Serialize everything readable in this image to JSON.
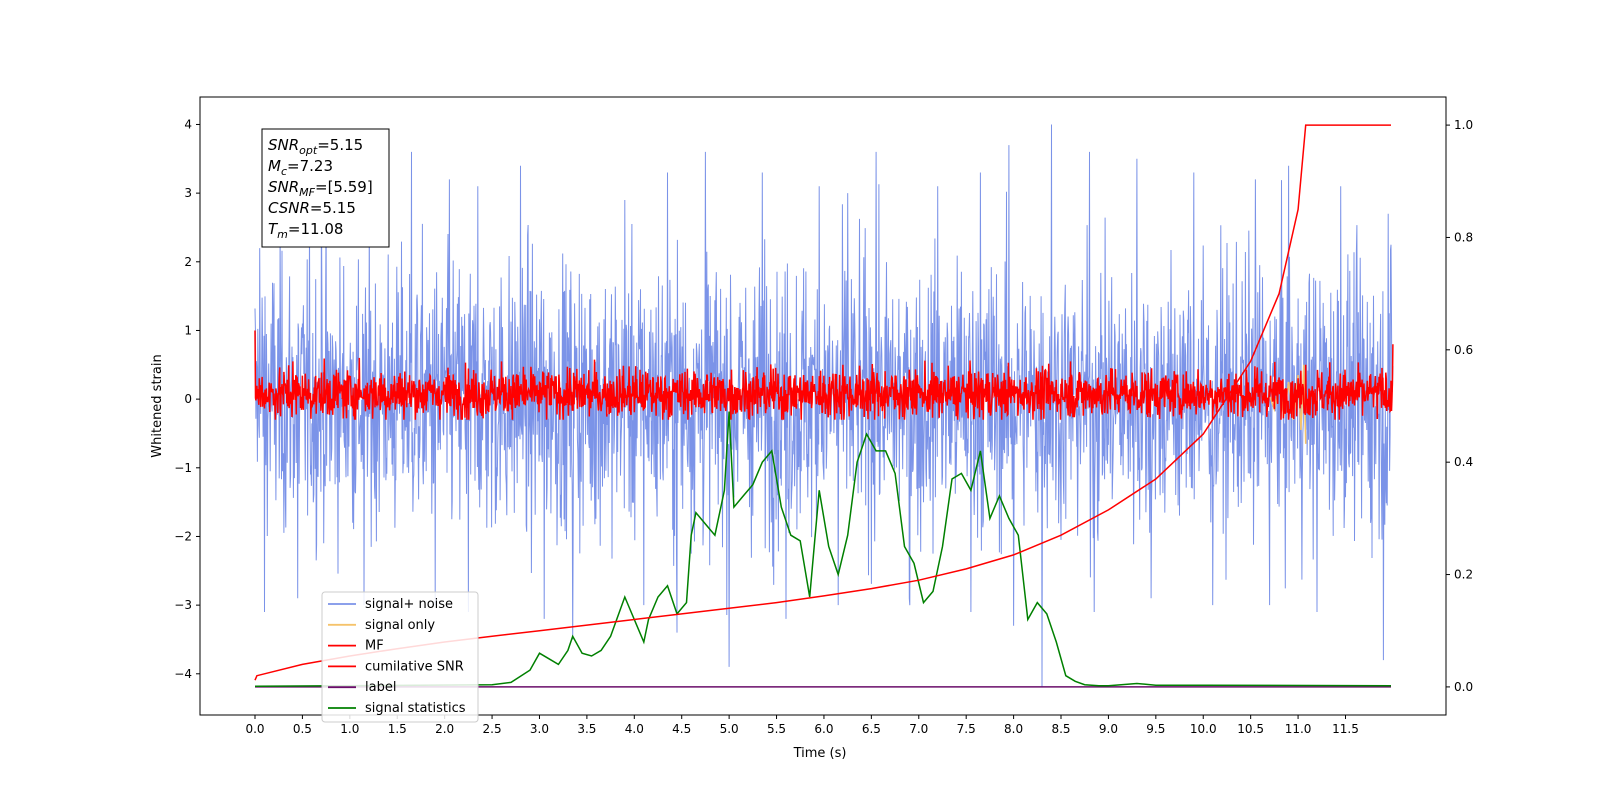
{
  "chart_data": {
    "type": "line",
    "xlabel": "Time (s)",
    "ylabel": "Whitened strain",
    "xlim": [
      -0.58,
      12.56
    ],
    "ylim": [
      -4.6,
      4.4
    ],
    "y2lim": [
      -0.05,
      1.05
    ],
    "x_ticks": [
      0.0,
      0.5,
      1.0,
      1.5,
      2.0,
      2.5,
      3.0,
      3.5,
      4.0,
      4.5,
      5.0,
      5.5,
      6.0,
      6.5,
      7.0,
      7.5,
      8.0,
      8.5,
      9.0,
      9.5,
      10.0,
      10.5,
      11.0,
      11.5
    ],
    "x_tick_labels": [
      "0.0",
      "0.5",
      "1.0",
      "1.5",
      "2.0",
      "2.5",
      "3.0",
      "3.5",
      "4.0",
      "4.5",
      "5.0",
      "5.5",
      "6.0",
      "6.5",
      "7.0",
      "7.5",
      "8.0",
      "8.5",
      "9.0",
      "9.5",
      "10.0",
      "10.5",
      "11.0",
      "11.5"
    ],
    "y_ticks": [
      -4,
      -3,
      -2,
      -1,
      0,
      1,
      2,
      3,
      4
    ],
    "y_tick_labels": [
      "−4",
      "−3",
      "−2",
      "−1",
      "0",
      "1",
      "2",
      "3",
      "4"
    ],
    "y2_ticks": [
      0.0,
      0.2,
      0.4,
      0.6,
      0.8,
      1.0
    ],
    "y2_tick_labels": [
      "0.0",
      "0.2",
      "0.4",
      "0.6",
      "0.8",
      "1.0"
    ],
    "annotation": {
      "lines": [
        {
          "sym": "SNR",
          "sub": "opt",
          "value": "=5.15"
        },
        {
          "sym": "M",
          "sub": "c",
          "value": "=7.23"
        },
        {
          "sym": "SNR",
          "sub": "MF",
          "value": "=[5.59]"
        },
        {
          "sym": "CSNR",
          "sub": "",
          "value": "=5.15"
        },
        {
          "sym": "T",
          "sub": "m",
          "value": "=11.08"
        }
      ]
    },
    "legend": {
      "placement": "lower-left",
      "entries": [
        "signal+ noise",
        "signal only",
        "MF",
        "cumilative SNR",
        "label",
        "signal statistics"
      ]
    },
    "series": [
      {
        "name": "signal+ noise",
        "axis": "left",
        "color": "#7b93e8",
        "x_range": [
          0.0,
          12.0
        ],
        "typical_range": [
          -1.6,
          1.6
        ],
        "peaks_high": [
          [
            0.05,
            2.2
          ],
          [
            0.7,
            2.9
          ],
          [
            1.15,
            3.4
          ],
          [
            1.65,
            3.6
          ],
          [
            2.05,
            3.2
          ],
          [
            2.35,
            3.1
          ],
          [
            2.8,
            3.4
          ],
          [
            3.35,
            3.9
          ],
          [
            3.9,
            2.9
          ],
          [
            4.35,
            3.3
          ],
          [
            4.75,
            3.6
          ],
          [
            5.35,
            3.3
          ],
          [
            5.95,
            3.1
          ],
          [
            6.25,
            3.0
          ],
          [
            6.55,
            3.6
          ],
          [
            7.2,
            3.1
          ],
          [
            7.65,
            3.3
          ],
          [
            7.95,
            3.7
          ],
          [
            8.4,
            4.0
          ],
          [
            8.8,
            3.6
          ],
          [
            9.3,
            3.5
          ],
          [
            9.9,
            3.3
          ],
          [
            10.55,
            3.2
          ],
          [
            10.9,
            3.4
          ],
          [
            11.45,
            3.1
          ],
          [
            11.95,
            2.7
          ]
        ],
        "peaks_low": [
          [
            0.1,
            -3.1
          ],
          [
            0.45,
            -2.9
          ],
          [
            1.15,
            -3.0
          ],
          [
            1.9,
            -3.0
          ],
          [
            2.25,
            -3.1
          ],
          [
            3.05,
            -3.2
          ],
          [
            3.35,
            -3.5
          ],
          [
            4.1,
            -3.0
          ],
          [
            4.45,
            -3.4
          ],
          [
            5.0,
            -3.9
          ],
          [
            5.6,
            -3.2
          ],
          [
            6.15,
            -3.0
          ],
          [
            6.9,
            -2.9
          ],
          [
            7.55,
            -3.1
          ],
          [
            8.0,
            -3.3
          ],
          [
            8.3,
            -4.2
          ],
          [
            8.85,
            -3.1
          ],
          [
            9.45,
            -2.9
          ],
          [
            10.1,
            -3.0
          ],
          [
            10.7,
            -3.0
          ],
          [
            11.2,
            -3.1
          ],
          [
            11.9,
            -3.8
          ]
        ]
      },
      {
        "name": "signal only",
        "axis": "left",
        "color": "#f5c36b",
        "points": [
          [
            10.7,
            0.05
          ],
          [
            10.75,
            -0.15
          ],
          [
            10.8,
            0.2
          ],
          [
            10.85,
            -0.25
          ],
          [
            10.9,
            0.25
          ],
          [
            10.95,
            -0.3
          ],
          [
            11.0,
            0.35
          ],
          [
            11.03,
            -0.45
          ],
          [
            11.06,
            0.5
          ],
          [
            11.08,
            -0.65
          ]
        ]
      },
      {
        "name": "MF",
        "axis": "left",
        "color": "#ff0000",
        "x_range": [
          0.0,
          12.0
        ],
        "typical_range": [
          -0.3,
          0.5
        ],
        "peaks": [
          [
            0.0,
            1.0
          ],
          [
            0.4,
            0.55
          ],
          [
            1.1,
            0.6
          ],
          [
            2.6,
            0.55
          ],
          [
            6.2,
            0.5
          ],
          [
            8.6,
            0.55
          ],
          [
            11.08,
            0.5
          ],
          [
            12.0,
            0.8
          ]
        ]
      },
      {
        "name": "cumilative SNR",
        "axis": "right",
        "color": "#ff0000",
        "x": [
          0.0,
          0.02,
          0.5,
          1.0,
          1.5,
          2.0,
          2.5,
          3.0,
          3.5,
          4.0,
          4.5,
          5.0,
          5.5,
          6.0,
          6.5,
          7.0,
          7.5,
          8.0,
          8.5,
          9.0,
          9.5,
          10.0,
          10.5,
          10.8,
          11.0,
          11.08,
          11.5,
          11.98
        ],
        "values": [
          0.012,
          0.02,
          0.04,
          0.055,
          0.068,
          0.08,
          0.09,
          0.1,
          0.11,
          0.12,
          0.13,
          0.14,
          0.15,
          0.162,
          0.175,
          0.19,
          0.21,
          0.235,
          0.27,
          0.315,
          0.37,
          0.45,
          0.58,
          0.7,
          0.85,
          1.0,
          1.0,
          1.0
        ]
      },
      {
        "name": "label",
        "axis": "right",
        "color": "#6a0d6a",
        "x": [
          0.0,
          11.98
        ],
        "values": [
          0.0,
          0.0
        ]
      },
      {
        "name": "signal statistics",
        "axis": "right",
        "color": "#008000",
        "x": [
          0.0,
          2.5,
          2.7,
          2.9,
          3.0,
          3.1,
          3.2,
          3.3,
          3.35,
          3.45,
          3.55,
          3.65,
          3.75,
          3.9,
          4.0,
          4.1,
          4.15,
          4.25,
          4.35,
          4.45,
          4.55,
          4.6,
          4.65,
          4.75,
          4.85,
          4.95,
          5.0,
          5.05,
          5.15,
          5.25,
          5.35,
          5.45,
          5.55,
          5.65,
          5.75,
          5.85,
          5.95,
          6.05,
          6.15,
          6.25,
          6.35,
          6.45,
          6.55,
          6.65,
          6.75,
          6.85,
          6.95,
          7.05,
          7.15,
          7.25,
          7.35,
          7.45,
          7.55,
          7.65,
          7.75,
          7.85,
          7.95,
          8.05,
          8.15,
          8.25,
          8.35,
          8.45,
          8.55,
          8.65,
          8.75,
          8.9,
          9.0,
          9.3,
          9.5,
          10.0,
          11.98
        ],
        "values": [
          0.001,
          0.004,
          0.008,
          0.03,
          0.06,
          0.05,
          0.04,
          0.065,
          0.09,
          0.06,
          0.055,
          0.065,
          0.09,
          0.16,
          0.12,
          0.08,
          0.12,
          0.16,
          0.18,
          0.13,
          0.15,
          0.27,
          0.31,
          0.29,
          0.27,
          0.35,
          0.49,
          0.32,
          0.34,
          0.36,
          0.4,
          0.42,
          0.32,
          0.27,
          0.26,
          0.16,
          0.35,
          0.25,
          0.2,
          0.27,
          0.4,
          0.45,
          0.42,
          0.42,
          0.38,
          0.25,
          0.22,
          0.15,
          0.17,
          0.25,
          0.37,
          0.38,
          0.35,
          0.42,
          0.3,
          0.34,
          0.3,
          0.27,
          0.12,
          0.15,
          0.13,
          0.08,
          0.02,
          0.01,
          0.004,
          0.002,
          0.002,
          0.006,
          0.003,
          0.003,
          0.002
        ]
      }
    ]
  }
}
